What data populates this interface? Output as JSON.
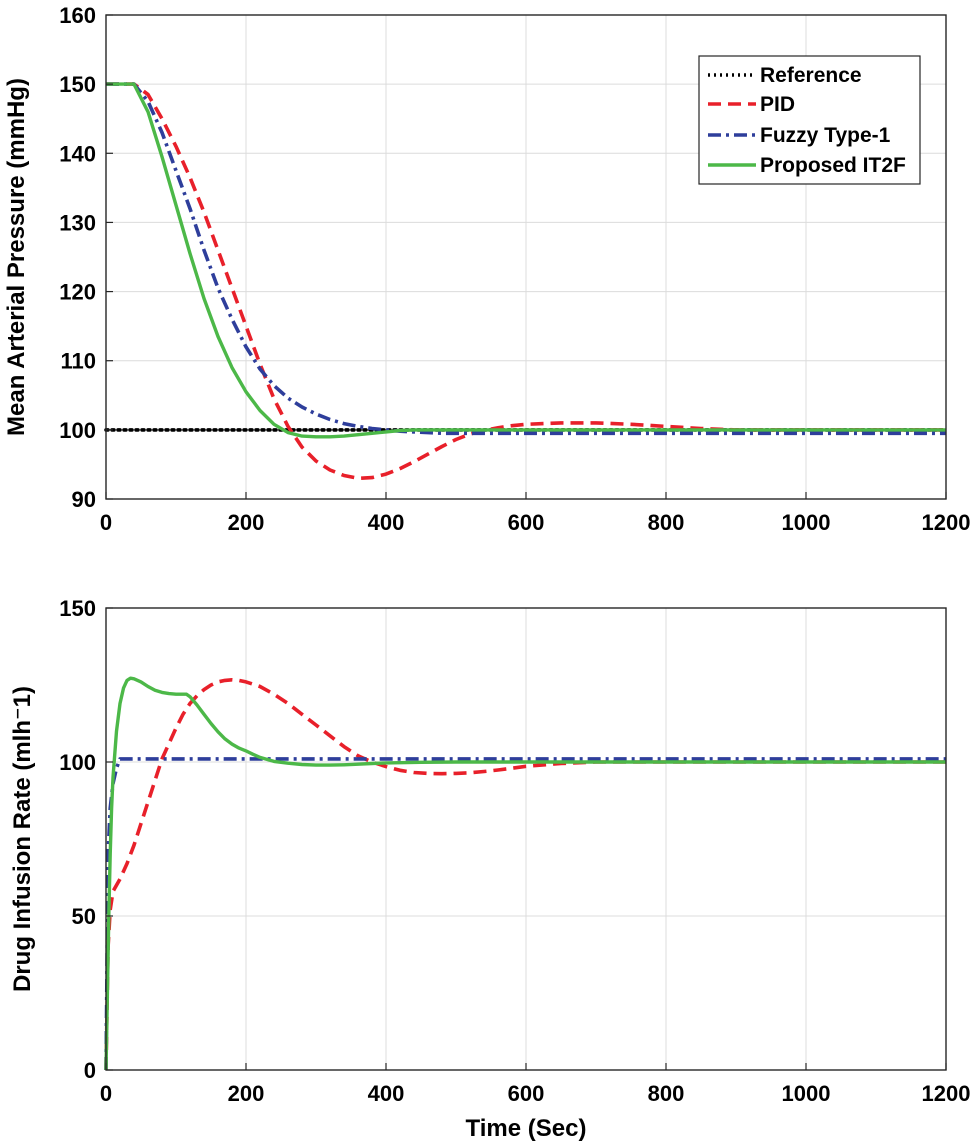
{
  "chart_data": [
    {
      "type": "line",
      "title": "",
      "xlabel": "",
      "ylabel": "Mean Arterial Pressure (mmHg)",
      "xlim": [
        0,
        1200
      ],
      "ylim": [
        90,
        160
      ],
      "xticks": [
        0,
        200,
        400,
        600,
        800,
        1000,
        1200
      ],
      "yticks": [
        90,
        100,
        110,
        120,
        130,
        140,
        150,
        160
      ],
      "grid": true,
      "legend": {
        "placement": "top-right",
        "entries": [
          "Reference",
          "PID",
          "Fuzzy Type-1",
          "Proposed IT2F"
        ]
      },
      "series": [
        {
          "name": "Reference",
          "style": "dotted",
          "color": "#000000",
          "x": [
            0,
            1200
          ],
          "y": [
            100,
            100
          ]
        },
        {
          "name": "PID",
          "style": "dashed",
          "color": "#e8202a",
          "x": [
            0,
            40,
            60,
            80,
            100,
            120,
            140,
            160,
            180,
            200,
            220,
            240,
            260,
            280,
            300,
            320,
            340,
            360,
            380,
            400,
            420,
            440,
            460,
            480,
            500,
            520,
            540,
            560,
            580,
            600,
            650,
            700,
            750,
            800,
            850,
            900,
            1000,
            1100,
            1200
          ],
          "y": [
            150,
            150,
            148.5,
            145,
            141,
            136.5,
            131.5,
            126,
            120.5,
            115,
            109.5,
            104.5,
            100.5,
            97.5,
            95.5,
            94.2,
            93.4,
            93,
            93.1,
            93.6,
            94.4,
            95.4,
            96.5,
            97.6,
            98.6,
            99.4,
            99.9,
            100.3,
            100.6,
            100.8,
            101,
            101,
            100.8,
            100.5,
            100.2,
            100,
            100,
            100,
            100
          ]
        },
        {
          "name": "Fuzzy Type-1",
          "style": "dashdot",
          "color": "#2e3e9b",
          "x": [
            0,
            40,
            60,
            80,
            100,
            120,
            140,
            160,
            180,
            200,
            220,
            240,
            260,
            280,
            300,
            320,
            340,
            360,
            380,
            400,
            420,
            440,
            460,
            480,
            500,
            550,
            600,
            700,
            800,
            1000,
            1200
          ],
          "y": [
            150,
            150,
            147.5,
            143,
            137.5,
            132,
            126,
            120.5,
            116,
            112,
            108.8,
            106.4,
            104.6,
            103.3,
            102.3,
            101.5,
            100.9,
            100.5,
            100.2,
            100,
            99.8,
            99.7,
            99.6,
            99.5,
            99.5,
            99.5,
            99.5,
            99.5,
            99.5,
            99.5,
            99.5
          ]
        },
        {
          "name": "Proposed IT2F",
          "style": "solid",
          "color": "#4cb848",
          "x": [
            0,
            40,
            60,
            80,
            100,
            120,
            140,
            160,
            180,
            200,
            220,
            240,
            260,
            280,
            300,
            320,
            340,
            360,
            380,
            400,
            420,
            440,
            460,
            500,
            600,
            800,
            1000,
            1200
          ],
          "y": [
            150,
            150,
            146,
            139.5,
            132.5,
            125.5,
            119,
            113.5,
            109,
            105.5,
            102.8,
            100.8,
            99.6,
            99.1,
            99,
            99,
            99.1,
            99.3,
            99.5,
            99.7,
            99.9,
            100,
            100,
            100,
            100,
            100,
            100,
            100
          ]
        }
      ]
    },
    {
      "type": "line",
      "title": "",
      "xlabel": "Time (Sec)",
      "ylabel": "Drug Infusion Rate (mlh⁻1)",
      "xlim": [
        0,
        1200
      ],
      "ylim": [
        0,
        150
      ],
      "xticks": [
        0,
        200,
        400,
        600,
        800,
        1000,
        1200
      ],
      "yticks": [
        0,
        50,
        100,
        150
      ],
      "grid": true,
      "series": [
        {
          "name": "PID",
          "style": "dashed",
          "color": "#e8202a",
          "x": [
            0,
            3,
            6,
            10,
            20,
            30,
            40,
            50,
            60,
            70,
            80,
            90,
            100,
            110,
            120,
            130,
            140,
            150,
            160,
            170,
            180,
            190,
            200,
            220,
            240,
            260,
            280,
            300,
            320,
            340,
            360,
            380,
            400,
            420,
            440,
            460,
            480,
            500,
            520,
            540,
            560,
            580,
            600,
            650,
            700,
            800,
            1000,
            1200
          ],
          "y": [
            0,
            40,
            52,
            58,
            62,
            67,
            73,
            80,
            87,
            94,
            101,
            106,
            111,
            115.5,
            119,
            121.5,
            123.5,
            125,
            126,
            126.5,
            126.7,
            126.5,
            126,
            124.5,
            122,
            119,
            115.5,
            112,
            108.5,
            105,
            102,
            100,
            98.5,
            97.3,
            96.6,
            96.3,
            96.2,
            96.3,
            96.5,
            96.9,
            97.4,
            98,
            98.6,
            99.5,
            100,
            100,
            100,
            100
          ]
        },
        {
          "name": "Fuzzy Type-1",
          "style": "dashdot",
          "color": "#2e3e9b",
          "x": [
            0,
            3,
            6,
            10,
            15,
            20,
            30,
            100,
            200,
            400,
            600,
            800,
            1000,
            1200
          ],
          "y": [
            0,
            70,
            85,
            93,
            98,
            101,
            101,
            101,
            101,
            101,
            101,
            101,
            101,
            101
          ]
        },
        {
          "name": "Proposed IT2F",
          "style": "solid",
          "color": "#4cb848",
          "x": [
            0,
            2,
            4,
            6,
            8,
            10,
            15,
            20,
            25,
            30,
            35,
            40,
            50,
            60,
            70,
            80,
            90,
            100,
            110,
            115,
            120,
            130,
            140,
            150,
            160,
            170,
            180,
            190,
            200,
            210,
            220,
            240,
            260,
            280,
            300,
            320,
            340,
            360,
            380,
            400,
            450,
            500,
            600,
            800,
            1000,
            1200
          ],
          "y": [
            0,
            25,
            50,
            70,
            85,
            95,
            110,
            119,
            124,
            126.5,
            127.2,
            127,
            126,
            124.5,
            123.3,
            122.6,
            122.2,
            122,
            122,
            122,
            121.2,
            118.5,
            115.5,
            112.5,
            109.8,
            107.5,
            105.8,
            104.5,
            103.6,
            102.5,
            101.5,
            100.2,
            99.6,
            99.2,
            99,
            99,
            99.1,
            99.3,
            99.5,
            99.7,
            99.9,
            100,
            100,
            100,
            100,
            100
          ]
        }
      ]
    }
  ]
}
